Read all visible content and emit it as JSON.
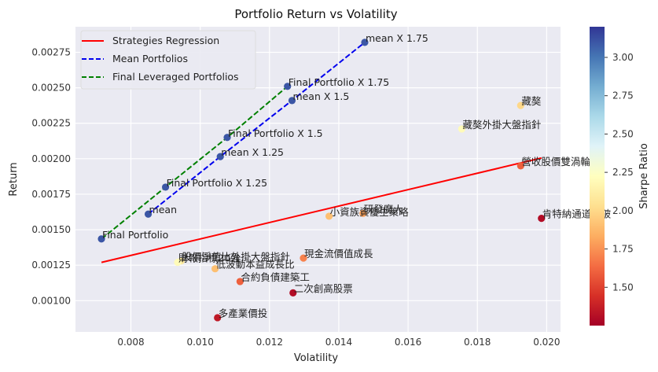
{
  "chart_data": {
    "type": "scatter",
    "title": "Portfolio Return vs Volatility",
    "xlabel": "Volatility",
    "ylabel": "Return",
    "xlim": [
      0.0064,
      0.0204
    ],
    "ylim": [
      0.00078,
      0.00293
    ],
    "x_ticks": [
      0.008,
      0.01,
      0.012,
      0.014,
      0.016,
      0.018,
      0.02
    ],
    "x_tick_labels": [
      "0.008",
      "0.010",
      "0.012",
      "0.014",
      "0.016",
      "0.018",
      "0.020"
    ],
    "y_ticks": [
      0.001,
      0.00125,
      0.0015,
      0.00175,
      0.002,
      0.00225,
      0.0025,
      0.00275
    ],
    "y_tick_labels": [
      "0.00100",
      "0.00125",
      "0.00150",
      "0.00175",
      "0.00200",
      "0.00225",
      "0.00250",
      "0.00275"
    ],
    "grid": true,
    "legend_position": "top-left",
    "colorbar": {
      "label": "Sharpe Ratio",
      "range": [
        1.25,
        3.2
      ],
      "ticks": [
        1.5,
        1.75,
        2.0,
        2.25,
        2.5,
        2.75,
        3.0
      ],
      "tick_labels": [
        "1.50",
        "1.75",
        "2.00",
        "2.25",
        "2.50",
        "2.75",
        "3.00"
      ],
      "colormap": "RdYlBu"
    },
    "points": [
      {
        "label": "藏獒",
        "x": 0.01925,
        "y": 0.002375,
        "sharpe": 2.0
      },
      {
        "label": "藏獒外掛大盤指針",
        "x": 0.01755,
        "y": 0.00221,
        "sharpe": 2.2
      },
      {
        "label": "營收股價雙渦輪",
        "x": 0.01925,
        "y": 0.00195,
        "sharpe": 1.6
      },
      {
        "label": "肯特納通道突破",
        "x": 0.01985,
        "y": 0.00158,
        "sharpe": 1.3
      },
      {
        "label": "研發魔人",
        "x": 0.0147,
        "y": 0.001615,
        "sharpe": 1.8
      },
      {
        "label": "小資族資優生策略",
        "x": 0.01372,
        "y": 0.001595,
        "sharpe": 1.9
      },
      {
        "label": "股價淨值比外掛大盤指針",
        "x": 0.00945,
        "y": 0.00128,
        "sharpe": 2.1
      },
      {
        "label": "財報指標20強",
        "x": 0.00935,
        "y": 0.00127,
        "sharpe": 2.2
      },
      {
        "label": "現金流價值成長",
        "x": 0.01298,
        "y": 0.0013,
        "sharpe": 1.7
      },
      {
        "label": "低波動本益成長比",
        "x": 0.01043,
        "y": 0.001225,
        "sharpe": 1.9
      },
      {
        "label": "合約負債建築工",
        "x": 0.01115,
        "y": 0.001135,
        "sharpe": 1.6
      },
      {
        "label": "二次創高股票",
        "x": 0.01268,
        "y": 0.001055,
        "sharpe": 1.3
      },
      {
        "label": "多產業價投",
        "x": 0.0105,
        "y": 0.00088,
        "sharpe": 1.35
      },
      {
        "label": "Final Portfolio",
        "x": 0.00715,
        "y": 0.001435,
        "sharpe": 3.1
      },
      {
        "label": "mean",
        "x": 0.0085,
        "y": 0.00161,
        "sharpe": 3.1
      },
      {
        "label": "Final Portfolio X 1.25",
        "x": 0.009,
        "y": 0.0018,
        "sharpe": 3.1
      },
      {
        "label": "mean X 1.25",
        "x": 0.01058,
        "y": 0.002015,
        "sharpe": 3.1
      },
      {
        "label": "Final Portfolio X 1.5",
        "x": 0.01078,
        "y": 0.00215,
        "sharpe": 3.1
      },
      {
        "label": "mean X 1.5",
        "x": 0.01265,
        "y": 0.00241,
        "sharpe": 3.1
      },
      {
        "label": "Final Portfolio X 1.75",
        "x": 0.01252,
        "y": 0.00251,
        "sharpe": 3.1
      },
      {
        "label": "mean X 1.75",
        "x": 0.01475,
        "y": 0.00282,
        "sharpe": 3.1
      }
    ],
    "lines": [
      {
        "name": "Strategies Regression",
        "color": "#ff0000",
        "style": "solid",
        "x": [
          0.00715,
          0.01985
        ],
        "y": [
          0.00127,
          0.002005
        ]
      },
      {
        "name": "Mean Portfolios",
        "color": "#0000ee",
        "style": "dashed",
        "x": [
          0.0085,
          0.01058,
          0.01265,
          0.01475
        ],
        "y": [
          0.00161,
          0.002015,
          0.00241,
          0.00282
        ]
      },
      {
        "name": "Final Leveraged Portfolios",
        "color": "#008000",
        "style": "dashed",
        "x": [
          0.00715,
          0.009,
          0.01078,
          0.01252
        ],
        "y": [
          0.001435,
          0.0018,
          0.00215,
          0.00251
        ]
      }
    ]
  }
}
